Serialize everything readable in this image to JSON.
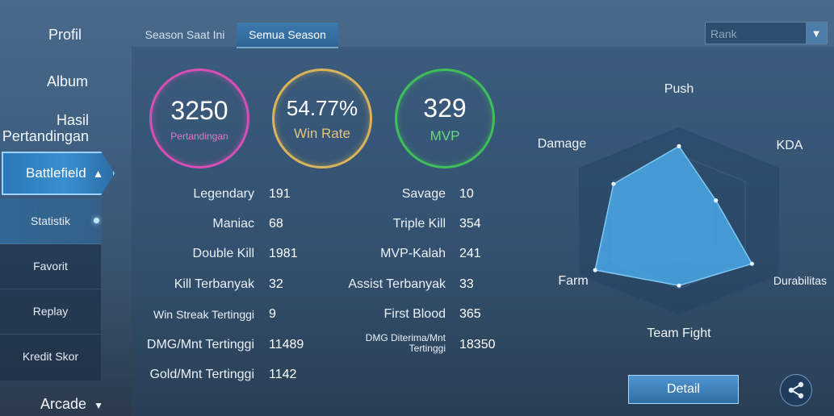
{
  "sidebar": {
    "profil": "Profil",
    "album": "Album",
    "hasil_line1": "Hasil",
    "hasil_line2": "Pertandingan",
    "battlefield": "Battlefield",
    "sub_items": [
      "Statistik",
      "Favorit",
      "Replay",
      "Kredit Skor"
    ],
    "arcade": "Arcade"
  },
  "tabs": [
    "Season Saat Ini",
    "Semua Season"
  ],
  "rank_select": "Rank",
  "summary": {
    "matches_value": "3250",
    "matches_label": "Pertandingan",
    "winrate_value": "54.77%",
    "winrate_label": "Win Rate",
    "mvp_value": "329",
    "mvp_label": "MVP"
  },
  "stats_left": [
    {
      "label": "Legendary",
      "value": "191"
    },
    {
      "label": "Maniac",
      "value": "68"
    },
    {
      "label": "Double Kill",
      "value": "1981"
    },
    {
      "label": "Kill Terbanyak",
      "value": "32"
    },
    {
      "label": "Win Streak Tertinggi",
      "value": "9"
    },
    {
      "label": "DMG/Mnt Tertinggi",
      "value": "11489"
    },
    {
      "label": "Gold/Mnt Tertinggi",
      "value": "1142"
    }
  ],
  "stats_right": [
    {
      "label": "Savage",
      "value": "10"
    },
    {
      "label": "Triple Kill",
      "value": "354"
    },
    {
      "label": "MVP-Kalah",
      "value": "241"
    },
    {
      "label": "Assist Terbanyak",
      "value": "33"
    },
    {
      "label": "First Blood",
      "value": "365"
    },
    {
      "label_line1": "DMG Diterima/Mnt",
      "label_line2": "Tertinggi",
      "value": "18350"
    }
  ],
  "radar": {
    "labels": {
      "push": "Push",
      "kda": "KDA",
      "durabilitas": "Durabilitas",
      "teamfight": "Team Fight",
      "farm": "Farm",
      "damage": "Damage"
    },
    "levels": {
      "push": 0.78,
      "kda": 0.44,
      "durabilitas": 0.87,
      "teamfight": 0.66,
      "farm": 1.0,
      "damage": 0.78
    }
  },
  "detail_button": "Detail",
  "colors": {
    "matches": "#d64fb6",
    "winrate": "#d9b45a",
    "mvp": "#3fbf5a",
    "accent": "#4aa8e6"
  }
}
